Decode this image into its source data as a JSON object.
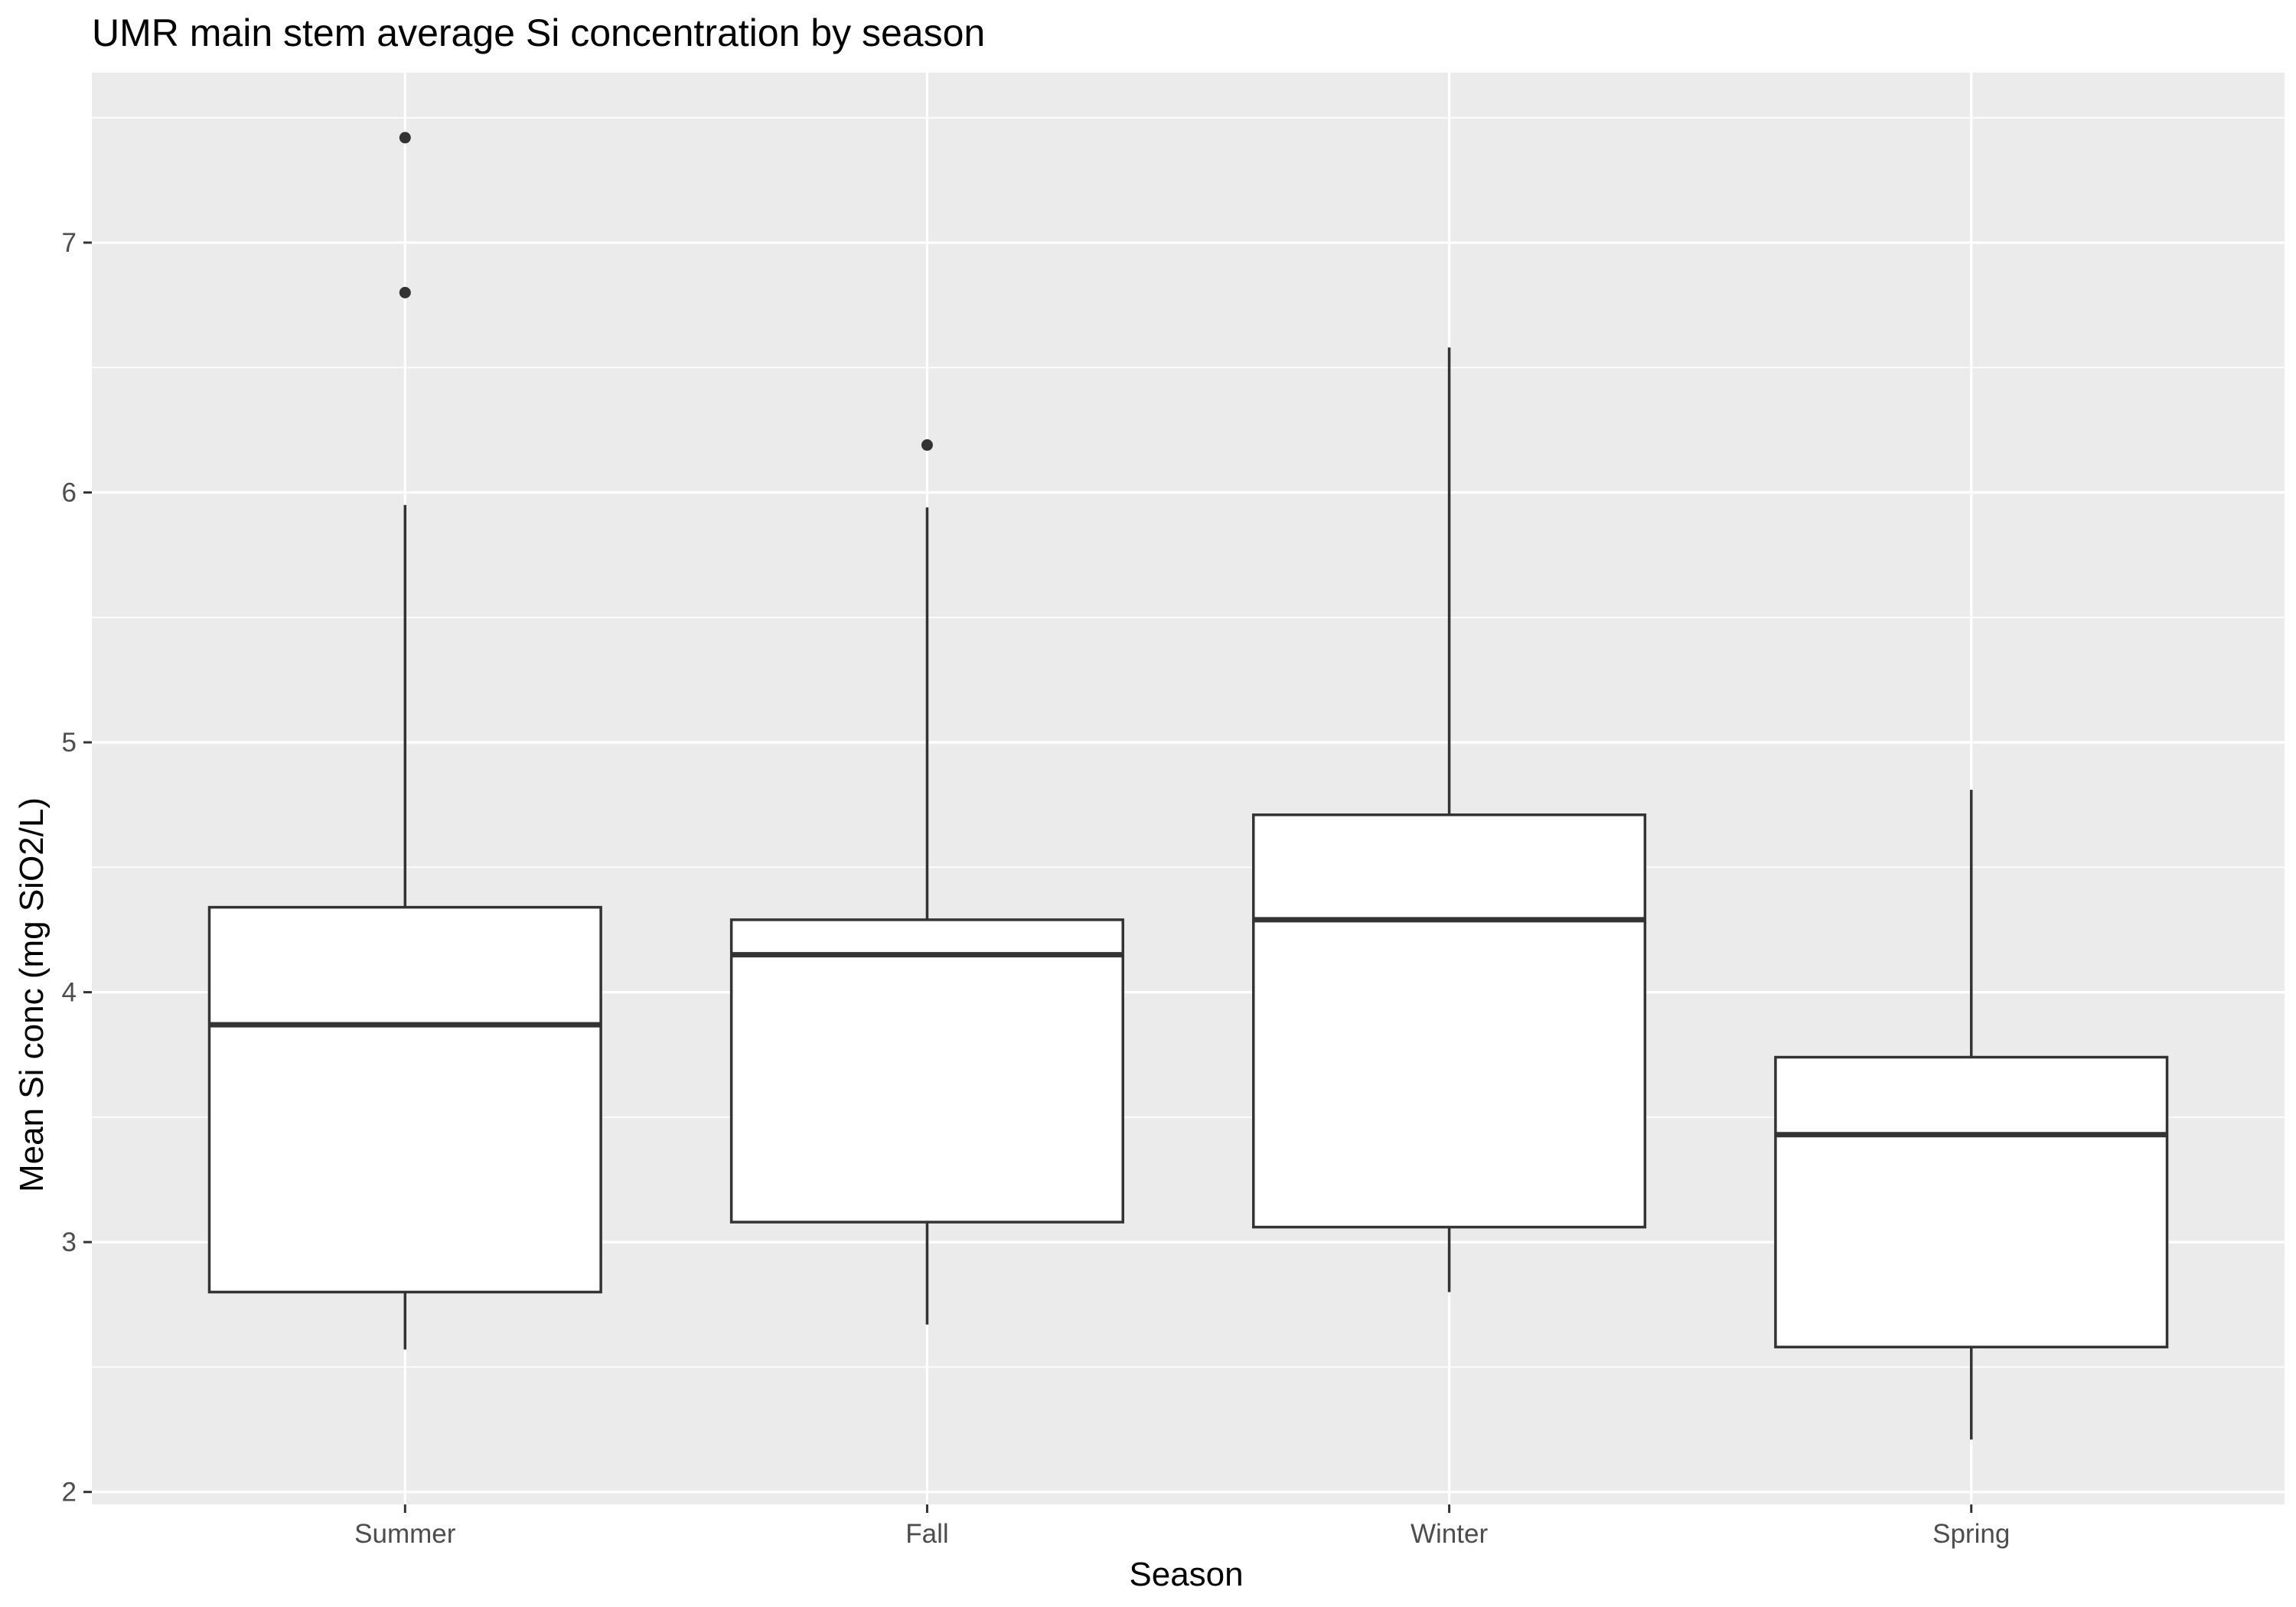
{
  "chart_data": {
    "type": "boxplot",
    "title": "UMR main stem average Si concentration by season",
    "xlabel": "Season",
    "ylabel": "Mean Si conc (mg SiO2/L)",
    "categories": [
      "Summer",
      "Fall",
      "Winter",
      "Spring"
    ],
    "ylim": [
      1.95,
      7.68
    ],
    "yticks": [
      2,
      3,
      4,
      5,
      6,
      7
    ],
    "grid": true,
    "legend": "none",
    "boxes": [
      {
        "category": "Summer",
        "whisker_low": 2.57,
        "q1": 2.8,
        "median": 3.87,
        "q3": 4.34,
        "whisker_high": 5.95,
        "outliers": [
          6.8,
          7.42
        ]
      },
      {
        "category": "Fall",
        "whisker_low": 2.67,
        "q1": 3.08,
        "median": 4.15,
        "q3": 4.29,
        "whisker_high": 5.94,
        "outliers": [
          6.19
        ]
      },
      {
        "category": "Winter",
        "whisker_low": 2.8,
        "q1": 3.06,
        "median": 4.29,
        "q3": 4.71,
        "whisker_high": 6.58,
        "outliers": []
      },
      {
        "category": "Spring",
        "whisker_low": 2.21,
        "q1": 2.58,
        "median": 3.43,
        "q3": 3.74,
        "whisker_high": 4.81,
        "outliers": []
      }
    ],
    "colors": {
      "panel": "#ebebeb",
      "grid": "#ffffff",
      "box_fill": "#ffffff",
      "box_line": "#333333",
      "tick": "#333333",
      "tick_text": "#4d4d4d"
    }
  }
}
